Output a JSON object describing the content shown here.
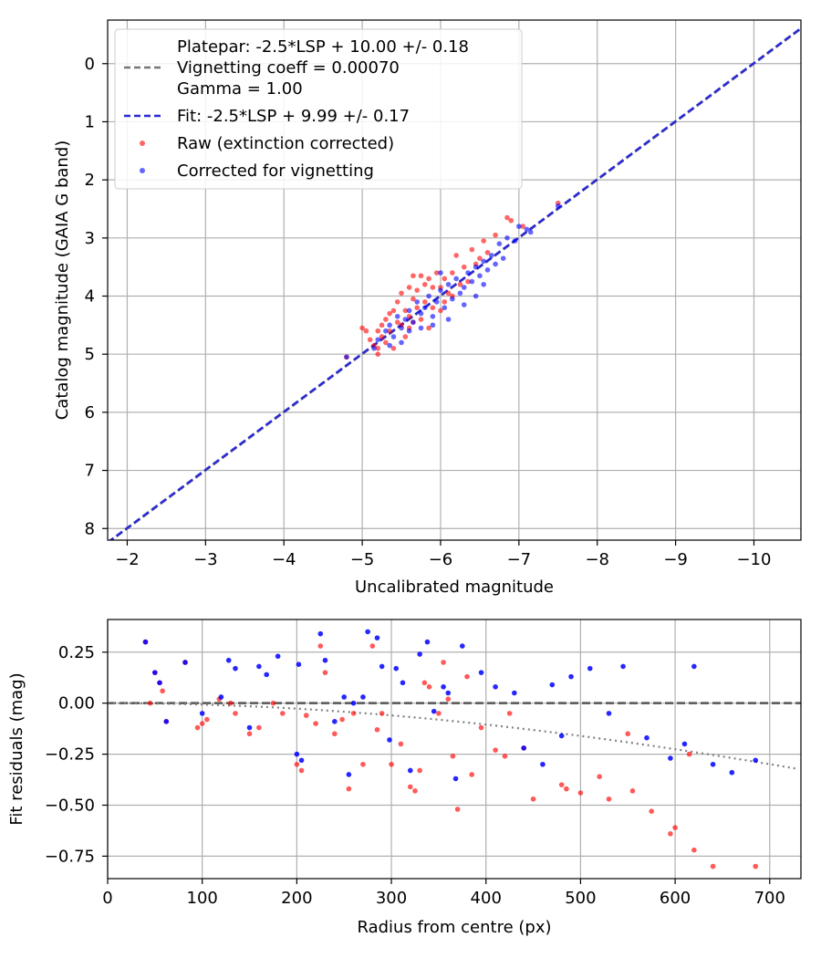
{
  "colors": {
    "raw": "#ff0000",
    "corrected": "#0000ff",
    "fit": "#2a2ad6",
    "platepar": "#777777",
    "grid": "#b0b0b0",
    "vignetting_model": "#808080"
  },
  "chart_data": [
    {
      "type": "scatter",
      "title": "",
      "xlabel": "Uncalibrated magnitude",
      "ylabel": "Catalog magnitude (GAIA G band)",
      "xlim": [
        -1.75,
        -10.6
      ],
      "ylim": [
        8.2,
        -0.75
      ],
      "x_inverted": true,
      "y_inverted": true,
      "grid": true,
      "legend_position": "top-left",
      "xticks": [
        -2,
        -3,
        -4,
        -5,
        -6,
        -7,
        -8,
        -9,
        -10
      ],
      "xtick_labels": [
        "−2",
        "−3",
        "−4",
        "−5",
        "−6",
        "−7",
        "−8",
        "−9",
        "−10"
      ],
      "yticks": [
        0,
        1,
        2,
        3,
        4,
        5,
        6,
        7,
        8
      ],
      "ytick_labels": [
        "0",
        "1",
        "2",
        "3",
        "4",
        "5",
        "6",
        "7",
        "8"
      ],
      "legend": [
        {
          "label_lines": [
            "Platepar: -2.5*LSP + 10.00 +/- 0.18",
            "Vignetting coeff = 0.00070",
            "Gamma = 1.00"
          ],
          "style": "dashed-gray"
        },
        {
          "label_lines": [
            "Fit: -2.5*LSP + 9.99 +/- 0.17"
          ],
          "style": "dashed-blue"
        },
        {
          "label_lines": [
            "Raw (extinction corrected)"
          ],
          "style": "dot-red"
        },
        {
          "label_lines": [
            "Corrected for vignetting"
          ],
          "style": "dot-blue"
        }
      ],
      "lines": [
        {
          "name": "Platepar",
          "slope": 1.0,
          "intercept": 10.0
        },
        {
          "name": "Fit",
          "slope": 1.0,
          "intercept": 9.99
        }
      ],
      "series": [
        {
          "name": "Raw (extinction corrected)",
          "points": [
            [
              -5.0,
              4.55
            ],
            [
              -5.05,
              4.6
            ],
            [
              -5.1,
              4.75
            ],
            [
              -5.15,
              4.85
            ],
            [
              -5.2,
              4.6
            ],
            [
              -5.2,
              4.9
            ],
            [
              -5.25,
              4.5
            ],
            [
              -5.25,
              4.7
            ],
            [
              -5.3,
              4.4
            ],
            [
              -5.3,
              4.8
            ],
            [
              -5.35,
              4.3
            ],
            [
              -5.35,
              4.6
            ],
            [
              -5.4,
              4.9
            ],
            [
              -5.45,
              4.1
            ],
            [
              -5.45,
              4.45
            ],
            [
              -5.5,
              3.95
            ],
            [
              -5.5,
              4.5
            ],
            [
              -5.55,
              4.25
            ],
            [
              -5.55,
              4.7
            ],
            [
              -5.6,
              3.85
            ],
            [
              -5.6,
              4.35
            ],
            [
              -5.65,
              3.65
            ],
            [
              -5.65,
              4.05
            ],
            [
              -5.7,
              4.2
            ],
            [
              -5.7,
              3.9
            ],
            [
              -5.75,
              3.65
            ],
            [
              -5.75,
              4.4
            ],
            [
              -5.8,
              3.8
            ],
            [
              -5.8,
              4.1
            ],
            [
              -5.85,
              4.55
            ],
            [
              -5.9,
              3.85
            ],
            [
              -5.9,
              4.2
            ],
            [
              -5.95,
              3.6
            ],
            [
              -6.0,
              3.85
            ],
            [
              -6.0,
              4.25
            ],
            [
              -6.05,
              3.7
            ],
            [
              -6.1,
              3.95
            ],
            [
              -6.15,
              3.6
            ],
            [
              -6.2,
              3.3
            ],
            [
              -6.25,
              3.8
            ],
            [
              -6.3,
              3.5
            ],
            [
              -6.35,
              3.75
            ],
            [
              -6.4,
              3.2
            ],
            [
              -6.45,
              3.45
            ],
            [
              -6.5,
              3.35
            ],
            [
              -6.55,
              3.05
            ],
            [
              -6.6,
              3.25
            ],
            [
              -6.7,
              2.95
            ],
            [
              -6.85,
              2.65
            ],
            [
              -6.9,
              2.7
            ],
            [
              -7.05,
              2.8
            ],
            [
              -7.5,
              2.4
            ],
            [
              -5.4,
              4.25
            ],
            [
              -5.6,
              4.55
            ],
            [
              -5.85,
              3.7
            ],
            [
              -6.15,
              4.0
            ],
            [
              -4.8,
              5.05
            ],
            [
              -5.2,
              5.0
            ],
            [
              -5.65,
              4.45
            ],
            [
              -6.05,
              4.1
            ]
          ]
        },
        {
          "name": "Corrected for vignetting",
          "points": [
            [
              -4.8,
              5.05
            ],
            [
              -5.15,
              4.9
            ],
            [
              -5.2,
              4.75
            ],
            [
              -5.3,
              4.6
            ],
            [
              -5.35,
              4.5
            ],
            [
              -5.4,
              4.7
            ],
            [
              -5.45,
              4.35
            ],
            [
              -5.5,
              4.55
            ],
            [
              -5.55,
              4.4
            ],
            [
              -5.6,
              4.25
            ],
            [
              -5.65,
              4.45
            ],
            [
              -5.7,
              4.1
            ],
            [
              -5.75,
              4.3
            ],
            [
              -5.8,
              4.2
            ],
            [
              -5.85,
              4.0
            ],
            [
              -5.9,
              4.35
            ],
            [
              -5.95,
              4.1
            ],
            [
              -6.0,
              3.9
            ],
            [
              -6.05,
              4.2
            ],
            [
              -6.1,
              3.8
            ],
            [
              -6.15,
              4.05
            ],
            [
              -6.2,
              3.7
            ],
            [
              -6.25,
              3.95
            ],
            [
              -6.3,
              3.85
            ],
            [
              -6.35,
              3.6
            ],
            [
              -6.4,
              3.75
            ],
            [
              -6.45,
              3.5
            ],
            [
              -6.5,
              3.65
            ],
            [
              -6.55,
              3.4
            ],
            [
              -6.6,
              3.55
            ],
            [
              -6.65,
              3.3
            ],
            [
              -6.7,
              3.45
            ],
            [
              -6.75,
              3.1
            ],
            [
              -6.85,
              3.0
            ],
            [
              -6.95,
              3.05
            ],
            [
              -7.0,
              2.8
            ],
            [
              -7.1,
              2.85
            ],
            [
              -7.15,
              2.9
            ],
            [
              -7.5,
              2.45
            ],
            [
              -5.5,
              4.8
            ],
            [
              -5.6,
              4.6
            ],
            [
              -5.9,
              4.5
            ],
            [
              -6.1,
              4.4
            ],
            [
              -6.3,
              4.15
            ],
            [
              -6.45,
              4.0
            ],
            [
              -5.35,
              4.85
            ],
            [
              -5.75,
              4.55
            ],
            [
              -6.0,
              3.6
            ],
            [
              -6.55,
              3.8
            ],
            [
              -6.8,
              3.35
            ]
          ]
        }
      ]
    },
    {
      "type": "scatter",
      "title": "",
      "xlabel": "Radius from centre (px)",
      "ylabel": "Fit residuals (mag)",
      "xlim": [
        0,
        733
      ],
      "ylim": [
        -0.86,
        0.41
      ],
      "grid": true,
      "xticks": [
        0,
        100,
        200,
        300,
        400,
        500,
        600,
        700
      ],
      "xtick_labels": [
        "0",
        "100",
        "200",
        "300",
        "400",
        "500",
        "600",
        "700"
      ],
      "yticks": [
        0.25,
        0.0,
        -0.25,
        -0.5,
        -0.75
      ],
      "ytick_labels": [
        "0.25",
        "0.00",
        "−0.25",
        "−0.50",
        "−0.75"
      ],
      "zero_line": 0.0,
      "vignetting_model": {
        "coefficient": 0.0007,
        "gamma": 1.0
      },
      "series": [
        {
          "name": "Raw (extinction corrected)",
          "points": [
            [
              40,
              0.3
            ],
            [
              45,
              0.0
            ],
            [
              50,
              0.15
            ],
            [
              55,
              0.1
            ],
            [
              58,
              0.06
            ],
            [
              62,
              -0.09
            ],
            [
              82,
              0.2
            ],
            [
              95,
              -0.12
            ],
            [
              100,
              -0.1
            ],
            [
              105,
              -0.08
            ],
            [
              118,
              0.02
            ],
            [
              130,
              0.0
            ],
            [
              135,
              -0.05
            ],
            [
              150,
              -0.15
            ],
            [
              160,
              -0.12
            ],
            [
              175,
              0.0
            ],
            [
              185,
              -0.05
            ],
            [
              200,
              -0.3
            ],
            [
              205,
              -0.33
            ],
            [
              210,
              -0.06
            ],
            [
              220,
              -0.1
            ],
            [
              225,
              0.28
            ],
            [
              230,
              0.15
            ],
            [
              240,
              -0.15
            ],
            [
              248,
              -0.08
            ],
            [
              255,
              -0.42
            ],
            [
              260,
              -0.05
            ],
            [
              270,
              -0.3
            ],
            [
              280,
              0.28
            ],
            [
              285,
              -0.13
            ],
            [
              290,
              -0.05
            ],
            [
              300,
              -0.3
            ],
            [
              310,
              -0.2
            ],
            [
              320,
              -0.41
            ],
            [
              325,
              -0.43
            ],
            [
              330,
              -0.33
            ],
            [
              335,
              0.1
            ],
            [
              340,
              0.08
            ],
            [
              350,
              -0.05
            ],
            [
              355,
              0.2
            ],
            [
              360,
              0.02
            ],
            [
              365,
              -0.26
            ],
            [
              370,
              -0.52
            ],
            [
              380,
              0.13
            ],
            [
              385,
              -0.35
            ],
            [
              395,
              -0.12
            ],
            [
              410,
              -0.23
            ],
            [
              420,
              -0.26
            ],
            [
              425,
              -0.05
            ],
            [
              440,
              -0.22
            ],
            [
              450,
              -0.47
            ],
            [
              480,
              -0.4
            ],
            [
              485,
              -0.42
            ],
            [
              500,
              -0.44
            ],
            [
              520,
              -0.36
            ],
            [
              530,
              -0.47
            ],
            [
              550,
              -0.15
            ],
            [
              555,
              -0.43
            ],
            [
              575,
              -0.53
            ],
            [
              595,
              -0.64
            ],
            [
              600,
              -0.61
            ],
            [
              615,
              -0.25
            ],
            [
              620,
              -0.72
            ],
            [
              640,
              -0.8
            ],
            [
              685,
              -0.8
            ]
          ]
        },
        {
          "name": "Corrected for vignetting",
          "points": [
            [
              40,
              0.3
            ],
            [
              50,
              0.15
            ],
            [
              55,
              0.1
            ],
            [
              62,
              -0.09
            ],
            [
              82,
              0.2
            ],
            [
              100,
              -0.05
            ],
            [
              120,
              0.03
            ],
            [
              128,
              0.21
            ],
            [
              135,
              0.17
            ],
            [
              150,
              -0.12
            ],
            [
              160,
              0.18
            ],
            [
              168,
              0.14
            ],
            [
              180,
              0.23
            ],
            [
              200,
              -0.25
            ],
            [
              202,
              0.19
            ],
            [
              205,
              -0.28
            ],
            [
              225,
              0.34
            ],
            [
              230,
              0.21
            ],
            [
              240,
              -0.09
            ],
            [
              250,
              0.03
            ],
            [
              255,
              -0.35
            ],
            [
              260,
              0.0
            ],
            [
              270,
              0.03
            ],
            [
              275,
              0.35
            ],
            [
              285,
              0.32
            ],
            [
              290,
              0.18
            ],
            [
              298,
              -0.18
            ],
            [
              305,
              0.17
            ],
            [
              312,
              0.1
            ],
            [
              320,
              -0.33
            ],
            [
              330,
              0.24
            ],
            [
              338,
              0.3
            ],
            [
              345,
              -0.04
            ],
            [
              355,
              0.08
            ],
            [
              360,
              0.05
            ],
            [
              368,
              -0.37
            ],
            [
              375,
              0.28
            ],
            [
              395,
              0.15
            ],
            [
              410,
              0.08
            ],
            [
              430,
              0.05
            ],
            [
              440,
              -0.22
            ],
            [
              460,
              -0.3
            ],
            [
              470,
              0.09
            ],
            [
              480,
              -0.16
            ],
            [
              490,
              0.13
            ],
            [
              510,
              0.17
            ],
            [
              530,
              -0.05
            ],
            [
              545,
              0.18
            ],
            [
              570,
              -0.17
            ],
            [
              595,
              -0.27
            ],
            [
              610,
              -0.2
            ],
            [
              620,
              0.18
            ],
            [
              640,
              -0.3
            ],
            [
              660,
              -0.34
            ],
            [
              685,
              -0.28
            ]
          ]
        }
      ]
    }
  ]
}
